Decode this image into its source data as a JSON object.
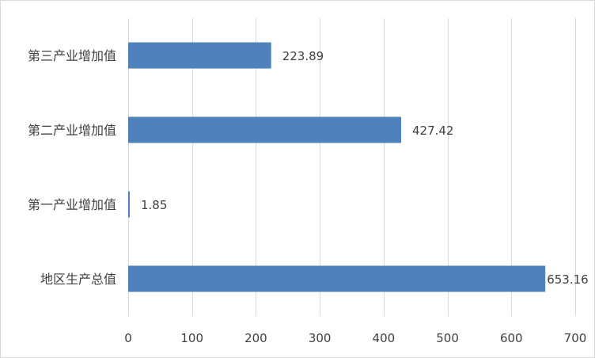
{
  "chart_data": {
    "type": "bar",
    "orientation": "horizontal",
    "title": "",
    "xlabel": "",
    "ylabel": "",
    "categories": [
      "第三产业增加值",
      "第二产业增加值",
      "第一产业增加值",
      "地区生产总值"
    ],
    "values": [
      223.89,
      427.42,
      1.85,
      653.16
    ],
    "data_labels": [
      "223.89",
      "427.42",
      "1.85",
      "653.16"
    ],
    "xlim": [
      0,
      700
    ],
    "xticks": [
      0,
      100,
      200,
      300,
      400,
      500,
      600,
      700
    ],
    "xtick_labels": [
      "0",
      "100",
      "200",
      "300",
      "400",
      "500",
      "600",
      "700"
    ],
    "grid": "vertical",
    "legend": "none",
    "bar_color": "#4f81bd"
  }
}
